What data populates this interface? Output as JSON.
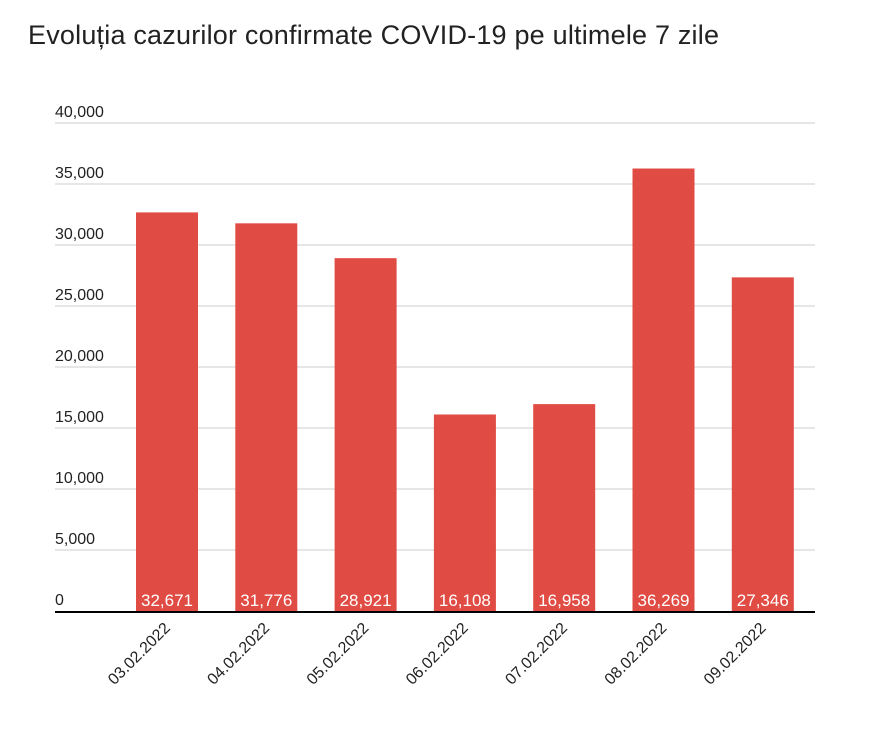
{
  "title": "Evoluția cazurilor confirmate COVID-19 pe ultimele 7 zile",
  "chart_data": {
    "type": "bar",
    "title": "Evoluția cazurilor confirmate COVID-19 pe ultimele 7 zile",
    "categories": [
      "03.02.2022",
      "04.02.2022",
      "05.02.2022",
      "06.02.2022",
      "07.02.2022",
      "08.02.2022",
      "09.02.2022"
    ],
    "values": [
      32671,
      31776,
      28921,
      16108,
      16958,
      36269,
      27346
    ],
    "data_labels": [
      "32,671",
      "31,776",
      "28,921",
      "16,108",
      "16,958",
      "36,269",
      "27,346"
    ],
    "yticks": [
      0,
      5000,
      10000,
      15000,
      20000,
      25000,
      30000,
      35000,
      40000
    ],
    "ytick_labels": [
      "0",
      "5,000",
      "10,000",
      "15,000",
      "20,000",
      "25,000",
      "30,000",
      "35,000",
      "40,000"
    ],
    "ylim": [
      0,
      40000
    ],
    "xlabel": "",
    "ylabel": "",
    "grid": true,
    "legend": "none",
    "bar_color": "#e04b43",
    "grid_color": "#cccccc",
    "axis_color": "#000000"
  }
}
